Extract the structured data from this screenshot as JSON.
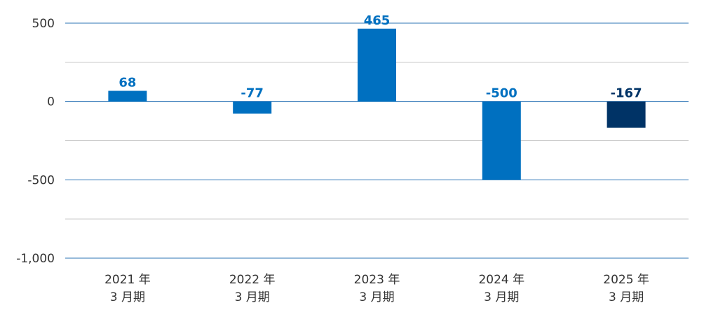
{
  "chart_data": {
    "type": "bar",
    "categories": [
      [
        "2021 年",
        "3 月期"
      ],
      [
        "2022 年",
        "3 月期"
      ],
      [
        "2023 年",
        "3 月期"
      ],
      [
        "2024 年",
        "3 月期"
      ],
      [
        "2025 年",
        "3 月期"
      ]
    ],
    "values": [
      68,
      -77,
      465,
      -500,
      -167
    ],
    "data_labels": [
      "68",
      "-77",
      "465",
      "-500",
      "-167"
    ],
    "bar_colors": [
      "#0070C0",
      "#0070C0",
      "#0070C0",
      "#0070C0",
      "#003366"
    ],
    "label_colors": [
      "#0070C0",
      "#0070C0",
      "#0070C0",
      "#0070C0",
      "#003366"
    ],
    "ylim": [
      -1000,
      500
    ],
    "yticks": [
      500,
      0,
      -500,
      -1000
    ],
    "ytick_labels": [
      "500",
      "0",
      "-500",
      "-1,000"
    ],
    "minor_gridlines": [
      250,
      -250,
      -750
    ],
    "major_gridline_color": "#2E75B6",
    "minor_gridline_color": "#C8C8C8",
    "grid": true,
    "legend": "none",
    "title": "",
    "xlabel": "",
    "ylabel": ""
  }
}
